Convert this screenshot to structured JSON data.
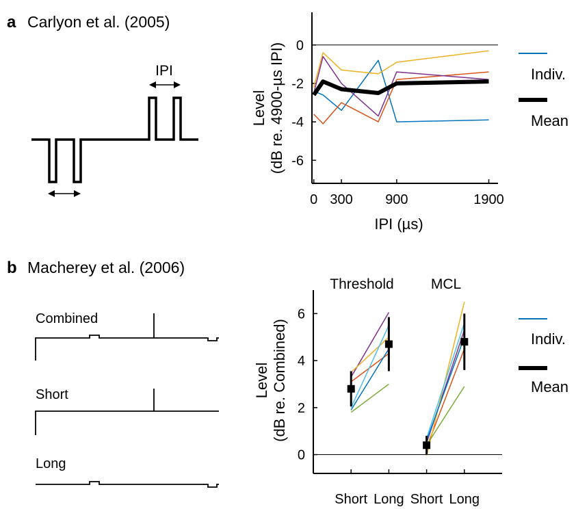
{
  "panel_a": {
    "letter": "a",
    "citation": "Carlyon et al. (2005)",
    "diagram_label": "IPI"
  },
  "panel_b": {
    "letter": "b",
    "citation": "Macherey et al. (2006)",
    "stimuli": [
      "Combined",
      "Short",
      "Long"
    ]
  },
  "colors": {
    "blue": "#0072BD",
    "orange": "#D95319",
    "yellow": "#EDB120",
    "purple": "#7E2F8E",
    "green": "#77AC30",
    "cyan": "#4DBEEE",
    "mean": "#000000"
  },
  "chart_data": [
    {
      "type": "line",
      "ylabel": [
        "Level",
        "(dB re. 4900-µs IPI)"
      ],
      "xlabel": "IPI (µs)",
      "xlim": [
        -20,
        2000
      ],
      "ylim": [
        -7.2,
        1.7
      ],
      "xticks": [
        0,
        300,
        900,
        1900
      ],
      "yticks": [
        0,
        -2,
        -4,
        -6
      ],
      "reference_line": 0,
      "legend": {
        "position": "right",
        "entries": [
          "Indiv.",
          "Mean"
        ]
      },
      "x": [
        0,
        100,
        300,
        700,
        900,
        1900
      ],
      "series": [
        {
          "role": "individual",
          "color": "blue",
          "values": [
            -2.4,
            -2.6,
            -3.4,
            -0.8,
            -4.0,
            -3.9
          ]
        },
        {
          "role": "individual",
          "color": "orange",
          "values": [
            -3.6,
            -4.1,
            -3.0,
            -4.0,
            -1.8,
            -1.4
          ]
        },
        {
          "role": "individual",
          "color": "yellow",
          "values": [
            -2.2,
            -0.4,
            -1.3,
            -1.5,
            -0.9,
            -0.3
          ]
        },
        {
          "role": "individual",
          "color": "purple",
          "values": [
            -2.5,
            -0.6,
            -2.0,
            -3.7,
            -1.4,
            -1.8
          ]
        },
        {
          "role": "mean",
          "color": "mean",
          "values": [
            -2.6,
            -1.9,
            -2.3,
            -2.5,
            -2.0,
            -1.9
          ]
        }
      ]
    },
    {
      "type": "line",
      "ylabel": [
        "Level",
        "(dB re. Combined)"
      ],
      "xlabel": "",
      "xlim": [
        0,
        5
      ],
      "ylim": [
        -0.8,
        7
      ],
      "xticks": [
        1,
        2,
        3,
        4
      ],
      "xticklabels": [
        "Short",
        "Long",
        "Short",
        "Long"
      ],
      "yticks": [
        0,
        2,
        4,
        6
      ],
      "reference_line": 0,
      "groups": [
        {
          "label": "Threshold",
          "x": [
            1,
            2
          ]
        },
        {
          "label": "MCL",
          "x": [
            3,
            4
          ]
        }
      ],
      "legend": {
        "position": "right",
        "entries": [
          "Indiv.",
          "Mean"
        ]
      },
      "individual": [
        {
          "color": "purple",
          "threshold": [
            3.3,
            6.05
          ],
          "mcl": [
            0.5,
            5.3
          ]
        },
        {
          "color": "orange",
          "threshold": [
            3.1,
            4.3
          ],
          "mcl": [
            0.3,
            4.5
          ]
        },
        {
          "color": "yellow",
          "threshold": [
            3.5,
            5.0
          ],
          "mcl": [
            -0.05,
            6.5
          ]
        },
        {
          "color": "cyan",
          "threshold": [
            2.0,
            5.5
          ],
          "mcl": [
            0.7,
            5.6
          ]
        },
        {
          "color": "blue",
          "threshold": [
            1.9,
            4.5
          ],
          "mcl": [
            0.6,
            5.0
          ]
        },
        {
          "color": "green",
          "threshold": [
            1.8,
            3.0
          ],
          "mcl": [
            0.4,
            2.9
          ]
        }
      ],
      "mean": {
        "threshold": [
          2.8,
          4.7
        ],
        "mcl": [
          0.4,
          4.8
        ]
      },
      "error": {
        "threshold": [
          0.75,
          1.15
        ],
        "mcl": [
          0.4,
          1.2
        ]
      }
    }
  ]
}
